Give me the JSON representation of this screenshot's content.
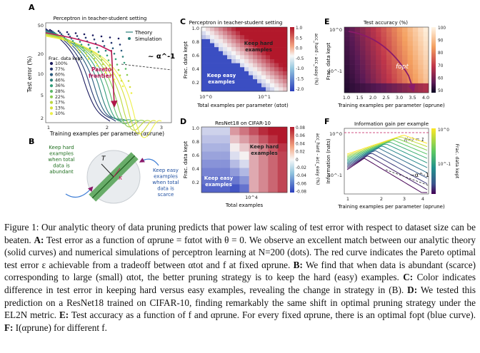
{
  "panels": {
    "A": {
      "letter": "A",
      "title": "Perceptron in teacher-student setting",
      "ylabel": "Test error (%)",
      "xlabel": "Training examples per parameter (αprune)",
      "yticks": [
        "50",
        "20",
        "10",
        "5",
        "2"
      ],
      "xticks": [
        "1",
        "2",
        "3"
      ],
      "legend_theory": "Theory",
      "legend_sim": "Simulation",
      "frac_title": "Frac. data kept",
      "frac_labels": [
        "100%",
        "77%",
        "60%",
        "46%",
        "36%",
        "28%",
        "22%",
        "17%",
        "13%",
        "10%"
      ],
      "pareto": "Pareto",
      "frontier": "frontier",
      "power_label": "~ α^-1"
    },
    "B": {
      "letter": "B",
      "left_text": [
        "Keep hard",
        "examples",
        "when total",
        "data is",
        "abundant"
      ],
      "right_text": [
        "Keep easy",
        "examples",
        "when total",
        "data is",
        "scarce"
      ],
      "t_label": "T",
      "k_label": "κ"
    },
    "C": {
      "letter": "C",
      "title": "Perceptron in teacher-student setting",
      "ylabel": "Frac. data kept",
      "xlabel": "Total examples per parameter (αtot)",
      "yticks": [
        "1.0",
        "0.8",
        "0.6",
        "0.4",
        "0.2"
      ],
      "xticks": [
        "10^0",
        "10^1"
      ],
      "cbar_ticks": [
        "1.0",
        "0.5",
        "0.0",
        "-0.5",
        "-1.0",
        "-1.5",
        "-2.0"
      ],
      "cbar_label": "acc_hard - acc_easy (%)",
      "hard_label": [
        "Keep hard",
        "examples"
      ],
      "easy_label": [
        "Keep easy",
        "examples"
      ]
    },
    "D": {
      "letter": "D",
      "title": "ResNet18 on CIFAR-10",
      "ylabel": "Frac. data kept",
      "xlabel": "Total examples",
      "yticks": [
        "1.0",
        "0.8",
        "0.6",
        "0.4",
        "0.2"
      ],
      "xticks": [
        "10^4"
      ],
      "cbar_ticks": [
        "0.08",
        "0.06",
        "0.04",
        "0.02",
        "0",
        "-0.02",
        "-0.04",
        "-0.06",
        "-0.08"
      ],
      "cbar_label": "acc_hard - acc_easy (%)",
      "hard_label": [
        "Keep hard",
        "examples"
      ],
      "easy_label": [
        "Keep easy",
        "examples"
      ]
    },
    "E": {
      "letter": "E",
      "title": "Test accuracy (%)",
      "ylabel": "Frac. data kept",
      "xlabel": "Training examples per parameter (αprune)",
      "yticks": [
        "10^0",
        "10^-1"
      ],
      "xticks": [
        "1.0",
        "1.5",
        "2.0",
        "2.5",
        "3.0",
        "3.5",
        "4.0"
      ],
      "cbar_ticks": [
        "100",
        "90",
        "80",
        "70",
        "60",
        "50"
      ],
      "fopt": "fopt"
    },
    "F": {
      "letter": "F",
      "title": "Information gain per example",
      "ylabel": "Information (nats)",
      "xlabel": "Training examples per parameter (αprune)",
      "yticks": [
        "10^0",
        "10^-1"
      ],
      "xticks": [
        "1",
        "2",
        "3",
        "4"
      ],
      "cbar_label": "Frac. data kept",
      "cbar_ticks": [
        "10^0",
        "10^-1"
      ],
      "finf": "I(∞) = 1",
      "power_label": "~α^-1"
    }
  },
  "caption": {
    "figure_label": "Figure 1:",
    "s1": "Our analytic theory of data pruning predicts that power law scaling of test error with respect to dataset size can be beaten.",
    "A_label": "A:",
    "A_text": "Test error as a function of αprune = fαtot with θ = 0. We observe an excellent match between our analytic theory (solid curves) and numerical simulations of perceptron learning at N=200 (dots). The red curve indicates the Pareto optimal test error ε achievable from a tradeoff between αtot and f at fixed αprune.",
    "B_label": "B:",
    "B_text": "We find that when data is abundant (scarce) corresponding to large (small) αtot, the better pruning strategy is to keep the hard (easy) examples.",
    "C_label": "C:",
    "C_text": "Color indicates difference in test error in keeping hard versus easy examples, revealing the change in strategy in (B).",
    "D_label": "D:",
    "D_text": "We tested this prediction on a ResNet18 trained on CIFAR-10, finding remarkably the same shift in optimal pruning strategy under the EL2N metric.",
    "E_label": "E:",
    "E_text": "Test accuracy as a function of f and αprune. For every fixed αprune, there is an optimal fopt (blue curve).",
    "F_label": "F:",
    "F_text": "I(αprune) for different f."
  }
}
